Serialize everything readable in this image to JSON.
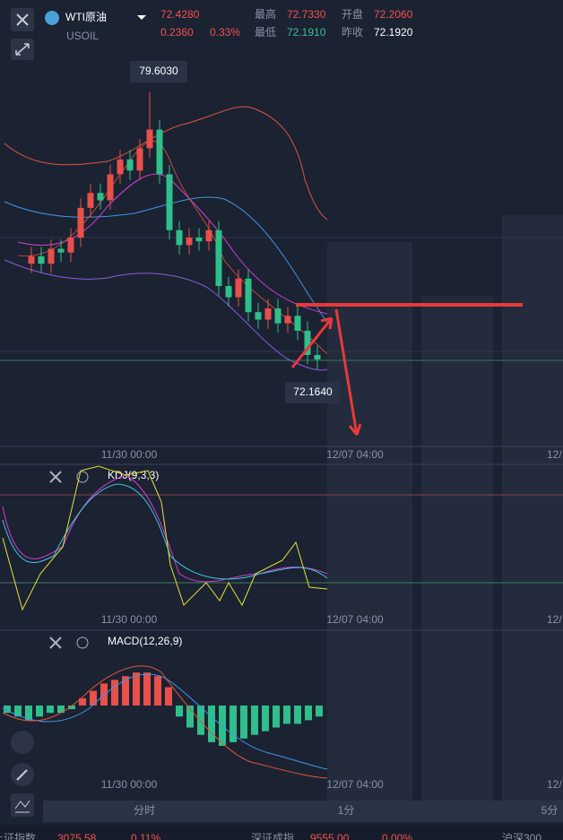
{
  "header": {
    "name": "WTI原油",
    "code": "USOIL",
    "price": "72.4280",
    "change": "0.2360",
    "change_pct": "0.33%",
    "stats": [
      {
        "label": "最高",
        "value": "72.7330"
      },
      {
        "label": "开盘",
        "value": "72.2060"
      },
      {
        "label": "最低",
        "value": "72.1910"
      },
      {
        "label": "昨收",
        "value": "72.1920"
      }
    ]
  },
  "chart": {
    "high_label": "79.6030",
    "low_label": "72.1640",
    "time_labels": [
      "11/30 00:00",
      "12/07 04:00",
      "12/"
    ],
    "candles": {
      "open": [
        75.0,
        75.2,
        75.0,
        75.4,
        75.3,
        75.7,
        76.5,
        76.9,
        76.7,
        77.4,
        77.8,
        77.5,
        78.1,
        78.6,
        77.4,
        75.9,
        75.5,
        75.7,
        75.6,
        75.9,
        74.4,
        74.1,
        74.6,
        73.7,
        73.5,
        73.8,
        73.4,
        73.6,
        73.2,
        72.55
      ],
      "close": [
        75.2,
        75.0,
        75.4,
        75.3,
        75.7,
        76.5,
        76.9,
        76.7,
        77.4,
        77.8,
        77.5,
        78.1,
        78.6,
        77.4,
        75.9,
        75.5,
        75.7,
        75.6,
        75.9,
        74.4,
        74.1,
        74.6,
        73.7,
        73.5,
        73.8,
        73.4,
        73.6,
        73.2,
        72.55,
        72.43
      ],
      "high": [
        75.45,
        75.45,
        75.65,
        75.65,
        75.95,
        76.75,
        77.15,
        77.15,
        77.65,
        78.05,
        78.05,
        78.35,
        79.6,
        78.85,
        77.65,
        76.15,
        75.95,
        75.95,
        76.15,
        76.15,
        74.65,
        74.85,
        74.85,
        73.95,
        74.05,
        74.05,
        73.85,
        73.85,
        73.45,
        72.8
      ],
      "low": [
        74.75,
        74.75,
        74.75,
        75.05,
        75.05,
        75.45,
        76.25,
        76.45,
        76.45,
        77.15,
        77.25,
        77.25,
        77.85,
        77.15,
        75.65,
        75.25,
        75.25,
        75.35,
        75.35,
        74.15,
        73.85,
        73.85,
        73.45,
        73.25,
        73.25,
        73.15,
        73.15,
        72.95,
        72.3,
        72.164
      ]
    }
  },
  "kdj": {
    "label": "KDJ(9,3,3)",
    "time_labels": [
      "11/30 00:00",
      "12/07 04:00",
      "12/"
    ]
  },
  "macd": {
    "label": "MACD(12,26,9)",
    "time_labels": [
      "11/30 00:00",
      "12/07 04:00",
      "12/"
    ],
    "histogram": [
      -0.02,
      -0.03,
      -0.04,
      -0.03,
      -0.02,
      -0.02,
      -0.01,
      0.02,
      0.04,
      0.06,
      0.07,
      0.08,
      0.09,
      0.09,
      0.08,
      0.05,
      -0.03,
      -0.06,
      -0.08,
      -0.1,
      -0.11,
      -0.1,
      -0.09,
      -0.08,
      -0.07,
      -0.06,
      -0.05,
      -0.05,
      -0.04,
      -0.03
    ]
  },
  "periods": [
    "分时",
    "1分",
    "5分"
  ],
  "ticker": [
    "上证指数",
    "3075.58",
    "0.11%",
    "深证成指",
    "9555.00",
    "0.00%",
    "沪深300"
  ]
}
